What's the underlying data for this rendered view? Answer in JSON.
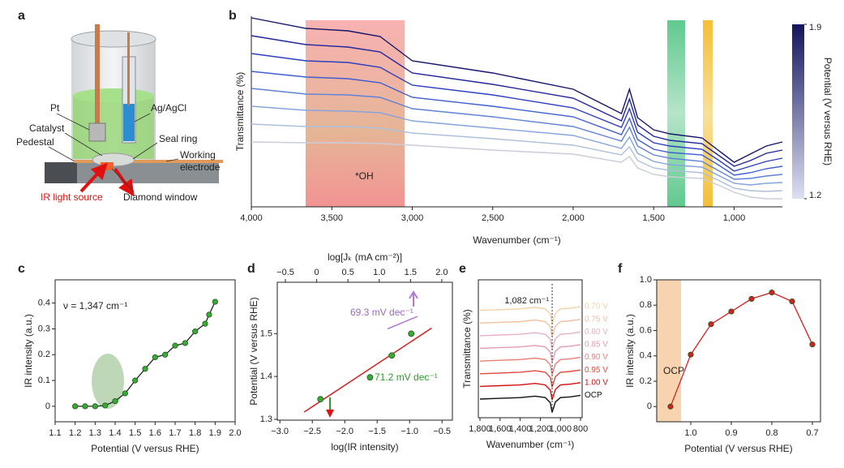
{
  "panel_labels": [
    "a",
    "b",
    "c",
    "d",
    "e",
    "f"
  ],
  "diagram": {
    "labels": [
      "Pt",
      "Ag/AgCl",
      "Catalyst",
      "Seal ring",
      "Pedestal",
      "Working",
      "electrode",
      "IR light source",
      "Diamond window"
    ]
  },
  "chart_data": [
    {
      "type": "line",
      "xlabel": "Wavenumber (cm⁻¹)",
      "ylabel": "Transmittance (%)",
      "annotations": [
        "*OH"
      ],
      "x": [
        4000,
        3660,
        3400,
        3200,
        3000,
        2500,
        2000,
        1700,
        1650,
        1600,
        1500,
        1400,
        1200,
        1100,
        1000,
        900,
        800,
        700
      ],
      "xlim": [
        4000,
        700
      ],
      "ylim": [
        0,
        235
      ],
      "xticks": [
        {
          "value": 4000,
          "label": "4,000"
        },
        {
          "value": 3500,
          "label": "3,500"
        },
        {
          "value": 3000,
          "label": "3,000"
        },
        {
          "value": 2500,
          "label": "2,500"
        },
        {
          "value": 2000,
          "label": "2,000"
        },
        {
          "value": 1500,
          "label": "1,500"
        },
        {
          "value": 1000,
          "label": "1,000"
        }
      ],
      "series": [
        {
          "color": "#15156a",
          "values": [
            233,
            220,
            217,
            210,
            180,
            165,
            145,
            115,
            145,
            110,
            95,
            90,
            85,
            70,
            55,
            65,
            75,
            80
          ]
        },
        {
          "color": "#22279a",
          "values": [
            211,
            200,
            197,
            191,
            165,
            151,
            134,
            106,
            133,
            101,
            87,
            82,
            78,
            64,
            50,
            57,
            66,
            70
          ]
        },
        {
          "color": "#2e3fbf",
          "values": [
            189,
            180,
            178,
            172,
            150,
            138,
            122,
            98,
            121,
            92,
            79,
            75,
            71,
            58,
            44,
            50,
            56,
            60
          ]
        },
        {
          "color": "#3f5ed0",
          "values": [
            167,
            160,
            158,
            153,
            135,
            124,
            111,
            89,
            109,
            83,
            71,
            67,
            64,
            52,
            39,
            42,
            47,
            50
          ]
        },
        {
          "color": "#5f82d8",
          "values": [
            146,
            139,
            138,
            135,
            121,
            111,
            99,
            81,
            98,
            75,
            64,
            60,
            56,
            45,
            34,
            35,
            38,
            40
          ]
        },
        {
          "color": "#86a4dc",
          "values": [
            124,
            119,
            118,
            116,
            106,
            97,
            88,
            72,
            86,
            66,
            56,
            52,
            49,
            39,
            29,
            27,
            29,
            30
          ]
        },
        {
          "color": "#aebfdc",
          "values": [
            102,
            99,
            99,
            97,
            91,
            84,
            76,
            64,
            74,
            57,
            48,
            45,
            42,
            33,
            23,
            20,
            19,
            20
          ]
        },
        {
          "color": "#c8cdd8",
          "values": [
            80,
            79,
            79,
            78,
            76,
            70,
            65,
            55,
            62,
            48,
            40,
            37,
            35,
            27,
            18,
            12,
            10,
            10
          ]
        }
      ],
      "colorbar": {
        "label": "Potential (V versus RHE)",
        "lim": [
          1.2,
          1.9
        ],
        "ticks": [
          1.2,
          1.9
        ],
        "colors": [
          "#dde0f2",
          "#14145e"
        ]
      }
    },
    {
      "type": "line",
      "markers": true,
      "color": "#222222",
      "marker_color": "#3aa935",
      "annotations": [
        "ν = 1,347 cm⁻¹"
      ],
      "xlabel": "Potential (V versus RHE)",
      "ylabel": "IR intensity (a.u.)",
      "x": [
        1.2,
        1.25,
        1.3,
        1.35,
        1.4,
        1.45,
        1.5,
        1.55,
        1.6,
        1.65,
        1.7,
        1.75,
        1.8,
        1.85,
        1.87,
        1.9
      ],
      "values": [
        0,
        0,
        0,
        0.003,
        0.02,
        0.05,
        0.1,
        0.145,
        0.19,
        0.2,
        0.235,
        0.245,
        0.29,
        0.32,
        0.355,
        0.405
      ],
      "xlim": [
        1.1,
        2.0
      ],
      "ylim": [
        -0.06,
        0.49
      ],
      "xticks": [
        1.1,
        1.2,
        1.3,
        1.4,
        1.5,
        1.6,
        1.7,
        1.8,
        1.9,
        {
          "value": 2,
          "label": "2.0"
        }
      ],
      "yticks": [
        0,
        0.1,
        0.2,
        0.3,
        0.4
      ]
    },
    {
      "type": "scatter",
      "color": "#3aa935",
      "xlabel": "log(IR intensity)",
      "x2label": "log[Jₖ (mA cm⁻²)]",
      "ylabel": "Potential (V versus RHE)",
      "annotations": [
        "69.3 mV dec⁻¹",
        "71.2 mV dec⁻¹"
      ],
      "x": [
        -2.375,
        -1.61,
        -1.275,
        -0.975
      ],
      "values": [
        1.347,
        1.398,
        1.449,
        1.5
      ],
      "fit": {
        "color": "#d42020",
        "x": [
          -2.625,
          -0.66
        ],
        "values": [
          1.317,
          1.513
        ]
      },
      "reference": {
        "color": "#b07ad0",
        "x": [
          -1.34,
          -0.88
        ],
        "values": [
          1.511,
          1.54
        ]
      },
      "xlim": [
        -3.04,
        -0.34
      ],
      "ylim": [
        1.298,
        1.62
      ],
      "x2lim": [
        -0.63,
        2.17
      ],
      "xticks": [
        {
          "value": -3,
          "label": "−3.0"
        },
        {
          "value": -2.5,
          "label": "−2.5"
        },
        {
          "value": -2,
          "label": "−2.0"
        },
        {
          "value": -1.5,
          "label": "−1.5"
        },
        {
          "value": -1,
          "label": "−1.0"
        },
        {
          "value": -0.5,
          "label": "−0.5"
        }
      ],
      "x2ticks": [
        {
          "value": -0.5,
          "label": "−0.5"
        },
        0,
        0.5,
        {
          "value": 1,
          "label": "1.0"
        },
        1.5,
        {
          "value": 2,
          "label": "2.0"
        }
      ],
      "yticks": [
        1.3,
        1.4,
        1.5
      ]
    },
    {
      "type": "line",
      "xlabel": "Wavenumber (cm⁻¹)",
      "ylabel": "Transmittance (%)",
      "marker_line": {
        "x": 1082,
        "label": "1,082 cm⁻¹"
      },
      "x": [
        1800,
        1600,
        1400,
        1250,
        1150,
        1100,
        1082,
        1050,
        1000,
        900,
        800
      ],
      "xlim": [
        1816,
        784
      ],
      "ylim": [
        -15,
        170
      ],
      "xticks": [
        {
          "value": 1800,
          "label": "1,800"
        },
        {
          "value": 1600,
          "label": "1,600"
        },
        {
          "value": 1400,
          "label": "1,400"
        },
        {
          "value": 1200,
          "label": "1,200"
        },
        {
          "value": 1000,
          "label": "1,000"
        },
        800
      ],
      "series": [
        {
          "name": "0.70 V",
          "color": "#f2d2a6",
          "values": [
            129,
            130,
            131,
            133,
            131,
            124,
            111,
            125,
            131,
            132,
            134
          ]
        },
        {
          "name": "0.75 V",
          "color": "#f0c0a0",
          "values": [
            112,
            113,
            114,
            116,
            114,
            107,
            94,
            108,
            114,
            115,
            117
          ]
        },
        {
          "name": "0.80 V",
          "color": "#e8b0c8",
          "values": [
            95,
            96,
            97,
            99,
            97,
            90,
            77,
            91,
            97,
            98,
            100
          ]
        },
        {
          "name": "0.85 V",
          "color": "#e49cb4",
          "values": [
            78,
            79,
            80,
            82,
            80,
            73,
            60,
            74,
            80,
            81,
            83
          ]
        },
        {
          "name": "0.90 V",
          "color": "#e88078",
          "values": [
            61,
            62,
            63,
            65,
            63,
            56,
            43,
            57,
            63,
            64,
            66
          ]
        },
        {
          "name": "0.95 V",
          "color": "#e04a40",
          "values": [
            44,
            45,
            46,
            48,
            46,
            39,
            26,
            40,
            46,
            47,
            49
          ]
        },
        {
          "name": "1.00 V",
          "color": "#d40f0f",
          "values": [
            27,
            28,
            29,
            31,
            29,
            22,
            9,
            23,
            29,
            30,
            32
          ]
        },
        {
          "name": "OCP",
          "color": "#111111",
          "values": [
            10,
            11,
            12,
            14,
            12,
            5,
            -8,
            6,
            12,
            13,
            15
          ]
        }
      ]
    },
    {
      "type": "line",
      "markers": true,
      "color": "#d42020",
      "marker_color": "#d42020",
      "annotations": [
        "OCP"
      ],
      "xlabel": "Potential (V versus RHE)",
      "ylabel": "IR intensity (a.u.)",
      "x": [
        1.05,
        1.0,
        0.95,
        0.9,
        0.85,
        0.8,
        0.75,
        0.7
      ],
      "values": [
        0,
        0.41,
        0.65,
        0.75,
        0.85,
        0.9,
        0.83,
        0.49
      ],
      "xlim": [
        1.084,
        0.68
      ],
      "ylim": [
        -0.12,
        1.0
      ],
      "xticks": [
        {
          "value": 1,
          "label": "1.0"
        },
        0.9,
        0.8,
        0.7
      ],
      "yticks": [
        0,
        0.2,
        0.4,
        0.6,
        0.8,
        {
          "value": 1,
          "label": "1.0"
        }
      ]
    }
  ]
}
